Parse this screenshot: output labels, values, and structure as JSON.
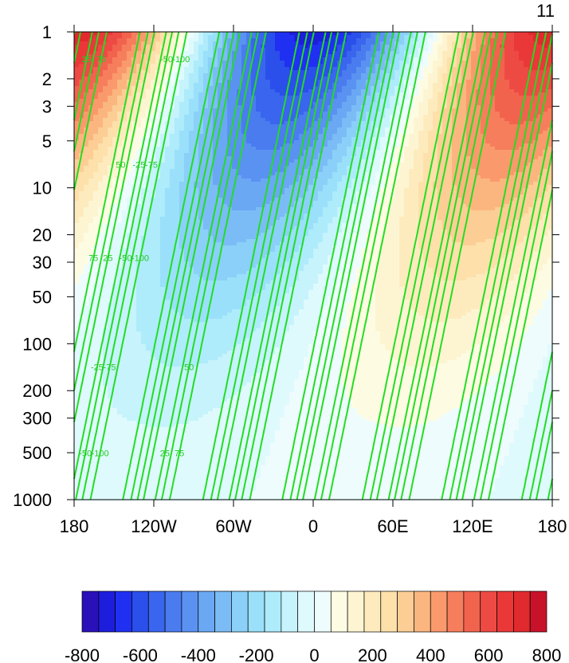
{
  "figure": {
    "corner_label": "11"
  },
  "chart_data": {
    "type": "heatmap",
    "title": "",
    "xlabel": "",
    "ylabel": "",
    "x_ticks": [
      {
        "value": -180,
        "label": "180"
      },
      {
        "value": -120,
        "label": "120W"
      },
      {
        "value": -60,
        "label": "60W"
      },
      {
        "value": 0,
        "label": "0"
      },
      {
        "value": 60,
        "label": "60E"
      },
      {
        "value": 120,
        "label": "120E"
      },
      {
        "value": 180,
        "label": "180"
      }
    ],
    "xlim": [
      -180,
      180
    ],
    "y_ticks": [
      {
        "value": 1,
        "label": "1"
      },
      {
        "value": 2,
        "label": "2"
      },
      {
        "value": 3,
        "label": "3"
      },
      {
        "value": 5,
        "label": "5"
      },
      {
        "value": 10,
        "label": "10"
      },
      {
        "value": 20,
        "label": "20"
      },
      {
        "value": 30,
        "label": "30"
      },
      {
        "value": 50,
        "label": "50"
      },
      {
        "value": 100,
        "label": "100"
      },
      {
        "value": 200,
        "label": "200"
      },
      {
        "value": 300,
        "label": "300"
      },
      {
        "value": 500,
        "label": "500"
      },
      {
        "value": 1000,
        "label": "1000"
      }
    ],
    "ylim": [
      1000,
      1
    ],
    "y_scale": "log",
    "y_inverted": true,
    "shading": {
      "levels_min": -800,
      "levels_max": 800,
      "levels_step": 50,
      "field_pattern": "planetary wave-1, amplitude growing with height, westward phase tilt",
      "peak_positive_lon": -180,
      "peak_negative_lon": -10,
      "top_amplitude": 720
    },
    "contours": {
      "color": "#22dd22",
      "negative_style": "dashed",
      "positive_style": "solid",
      "field_pattern": "zonal wave-3",
      "amplitude": 110,
      "interval": 25,
      "labeled_levels": [
        "-100",
        "-75",
        "-50",
        "-25",
        "25",
        "50",
        "75"
      ]
    },
    "colorbar": {
      "orientation": "horizontal",
      "min": -800,
      "max": 800,
      "tick_labels": [
        "-800",
        "-600",
        "-400",
        "-200",
        "0",
        "200",
        "400",
        "600",
        "800"
      ],
      "colors": [
        "#2a10b8",
        "#1d1ddc",
        "#2030f2",
        "#2b4fea",
        "#3a65ee",
        "#4a7cf0",
        "#5a92f2",
        "#6aa8f4",
        "#7cbcf6",
        "#8ad0f8",
        "#9ae0fa",
        "#aeebfb",
        "#c6f3fc",
        "#dffafd",
        "#eefcfd",
        "#fdfce3",
        "#fdf5d2",
        "#fdebbe",
        "#fde0aa",
        "#fcce95",
        "#fbb680",
        "#fa9a6c",
        "#f67e5c",
        "#f2634e",
        "#ee4a44",
        "#ea3838",
        "#e02a2e",
        "#c8122a"
      ]
    }
  }
}
